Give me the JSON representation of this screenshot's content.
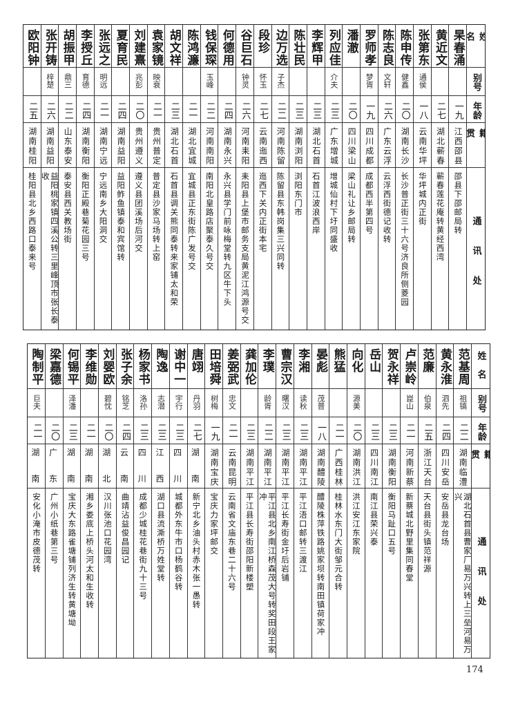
{
  "headers": {
    "name": "姓名",
    "alias": "别号",
    "age": "年龄",
    "native": "籍贯",
    "address": "通讯处"
  },
  "page_number": "174",
  "table_top": [
    {
      "name": "杲春涌",
      "alias": "",
      "age": "一九",
      "native": "江西邵县",
      "address": "邵县下邵邮局转"
    },
    {
      "name": "黄近文",
      "alias": "",
      "age": "二七",
      "native": "湖北蕲春",
      "address": "蕲春莲花庵转黄经西湾"
    },
    {
      "name": "张第东",
      "alias": "通侯",
      "age": "一八",
      "native": "云南华坪",
      "address": "华坪城内正街"
    },
    {
      "name": "陈申传",
      "alias": "健鑫",
      "age": "二〇",
      "native": "湖南长沙",
      "address": "长沙普正街三十六号济良所侧菱园"
    },
    {
      "name": "陈志良",
      "alias": "文轩",
      "age": "二六",
      "native": "广东云浮",
      "address": "云浮西街德记收转"
    },
    {
      "name": "罗师孝",
      "alias": "梦胥",
      "age": "一九",
      "native": "四川成都",
      "address": "成都西半第四号"
    },
    {
      "name": "潘澈",
      "alias": "",
      "age": "二〇",
      "native": "四川梁山",
      "address": "梁山礼让乡邮局转"
    },
    {
      "name": "列应佳",
      "alias": "介夫",
      "age": "二三",
      "native": "广东增城",
      "address": "增城仙村下圩同盛收"
    },
    {
      "name": "李辉甲",
      "alias": "",
      "age": "二三",
      "native": "湖北石首",
      "address": "石首江波浪西岸"
    },
    {
      "name": "陈壮民",
      "alias": "",
      "age": "二三",
      "native": "湖南浏阳",
      "address": "浏阳东门市"
    },
    {
      "name": "边万选",
      "alias": "子杰",
      "age": "二二",
      "native": "河南陈留",
      "address": "陈留县东韩岗集三兴同转"
    },
    {
      "name": "段珍",
      "alias": "怀玉",
      "age": "二七",
      "native": "云南迤西",
      "address": "迤西下关内正街本宅"
    },
    {
      "name": "谷巨石",
      "alias": "钟灵",
      "age": "二六",
      "native": "河南耒阳",
      "address": "耒阳县上堡市邮务支局黄泥江鸿源号交"
    },
    {
      "name": "何德用",
      "alias": "",
      "age": "二四",
      "native": "湖南永兴",
      "address": "永兴县学门前咏梅堂转九区牛下头"
    },
    {
      "name": "钱保琛",
      "alias": "玉峰",
      "age": "二二",
      "native": "河南南阳",
      "address": "南阳北皇路店聚泰久号交"
    },
    {
      "name": "陈鸿濂",
      "alias": "",
      "age": "二一",
      "native": "湖北宜城",
      "address": "宜城县正东街陈广发号交"
    },
    {
      "name": "胡文祥",
      "alias": "",
      "age": "二三",
      "native": "湖北石首",
      "address": "石首县调关熊同泰转来家铺太和荣"
    },
    {
      "name": "袁家镜",
      "alias": "映衰",
      "age": "二一",
      "native": "贵州普定",
      "address": "普定县沙家马场转上窑"
    },
    {
      "name": "刘建熹",
      "alias": "兆彭",
      "age": "二〇",
      "native": "贵州遵义",
      "address": "遵义县团溪场后河交"
    },
    {
      "name": "夏育民",
      "alias": "",
      "age": "二四",
      "native": "湖南益阳",
      "address": "益阳鲊鱼镇泰和宾馆转"
    },
    {
      "name": "张远之",
      "alias": "明远",
      "age": "二一",
      "native": "湖南宁远",
      "address": "宁远南乡大阳洞交"
    },
    {
      "name": "李授丘",
      "alias": "育德",
      "age": "二四",
      "native": "湖南衡阳",
      "address": "衡阳正殿巷菊花园三号"
    },
    {
      "name": "胡振甲",
      "alias": "鼎三",
      "age": "二二",
      "native": "山东泰安",
      "address": "泰安县西关教场街"
    },
    {
      "name": "张开铸",
      "alias": "梓楚",
      "age": "二六",
      "native": "湖南益阳",
      "address": "益阳桃家镇四溪公转三里峰顶市张长泰收"
    },
    {
      "name": "欧阳钟",
      "alias": "",
      "age": "二五",
      "native": "湖南桂阳",
      "address": "桂阳县北乡西路口泰来号"
    }
  ],
  "table_bottom": [
    {
      "name": "范基周",
      "alias": "祖镐",
      "age": "二二",
      "native": "湖南临澧",
      "address": "湖北石首县曹家厂易万兴转上三垒河易万兴"
    },
    {
      "name": "黄永淮",
      "alias": "泗先",
      "age": "二四",
      "native": "四川安岳",
      "address": "安岳县龙台场"
    },
    {
      "name": "范廉",
      "alias": "伯泉",
      "age": "二五",
      "native": "浙江天台",
      "address": "天台县街头镇范祥源"
    },
    {
      "name": "卢崇岭",
      "alias": "崑山",
      "age": "二一",
      "native": "河南新蔡",
      "address": "新蔡城北野里集同春堂"
    },
    {
      "name": "贺永祥",
      "alias": "",
      "age": "二三",
      "native": "湖南衡阳",
      "address": "衡阳马趾口五号"
    },
    {
      "name": "岳山",
      "alias": "",
      "age": "二三",
      "native": "四川南江",
      "address": "南江县荣兴泰"
    },
    {
      "name": "向化",
      "alias": "源美",
      "age": "二〇",
      "native": "湖南洪江",
      "address": "洪江安江东家院"
    },
    {
      "name": "熊猛",
      "alias": "",
      "age": "二一",
      "native": "广西桂林",
      "address": "桂林水东门大街邹元合转"
    },
    {
      "name": "晏彪",
      "alias": "茂普",
      "age": "一八",
      "native": "湖南醴陵",
      "address": "醴陵株萍铁路姚家坝转南田镇荷家冲"
    },
    {
      "name": "李湘",
      "alias": "读秋",
      "age": "二三",
      "native": "湖南平江",
      "address": "平江浯口邮转三渡江"
    },
    {
      "name": "曹宗汉",
      "alias": "曙汉",
      "age": "二三",
      "native": "湖南平江",
      "address": "平江长寿街金圩后岩铺"
    },
    {
      "name": "李璞",
      "alias": "龄胥",
      "age": "二二",
      "native": "湖南平江",
      "address": "平江县北乡南江桥森茂大号转奖田段王家冲"
    },
    {
      "name": "龚加伦",
      "alias": "",
      "age": "二三",
      "native": "湖南平江",
      "address": "平江县长寿街邵阳新楼塑"
    },
    {
      "name": "姜弼武",
      "alias": "忠文",
      "age": "二一",
      "native": "云南昆明",
      "address": "云南省文庙东巷二十六号"
    },
    {
      "name": "田培舜",
      "alias": "树梅",
      "age": "一九",
      "native": "湖南宝庆",
      "address": "宝庆力家坪邮交"
    },
    {
      "name": "唐翊",
      "alias": "丹羽",
      "age": "二七",
      "native": "湖南",
      "address": "新宁北乡油头村赤木张一愚转"
    },
    {
      "name": "谢中一",
      "alias": "宇行",
      "age": "二三",
      "native": "四川",
      "address": "城都外东牛市口杨鹤谷转"
    },
    {
      "name": "陶逸",
      "alias": "志潜",
      "age": "二三",
      "native": "江西",
      "address": "湖口县流澌桥万姓堂转"
    },
    {
      "name": "杨家书",
      "alias": "洛孙",
      "age": "二三",
      "native": "四川",
      "address": "成都少城桂花巷街九十三号"
    },
    {
      "name": "张子余",
      "alias": "铭芝",
      "age": "二四",
      "native": "云南",
      "address": "曲靖沾益俊昌园记"
    },
    {
      "name": "刘婴欧",
      "alias": "碧忱",
      "age": "二〇",
      "native": "湖北",
      "address": "汉川张池口花园湾"
    },
    {
      "name": "李维勋",
      "alias": "",
      "age": "二一",
      "native": "湖南",
      "address": "湘乡娄底上桥头河太和生收转"
    },
    {
      "name": "何锡平",
      "alias": "泽潘",
      "age": "二三",
      "native": "湖南",
      "address": "宝庆大东路雀塘铺列济生转黄塘坳"
    },
    {
      "name": "梁嘉德",
      "alias": "",
      "age": "二〇",
      "native": "广东",
      "address": "广州小纸巷第三号"
    },
    {
      "name": "陶制平",
      "alias": "巨夫",
      "age": "二一",
      "native": "湖南",
      "address": "安化小淹市皮德茂转"
    }
  ]
}
